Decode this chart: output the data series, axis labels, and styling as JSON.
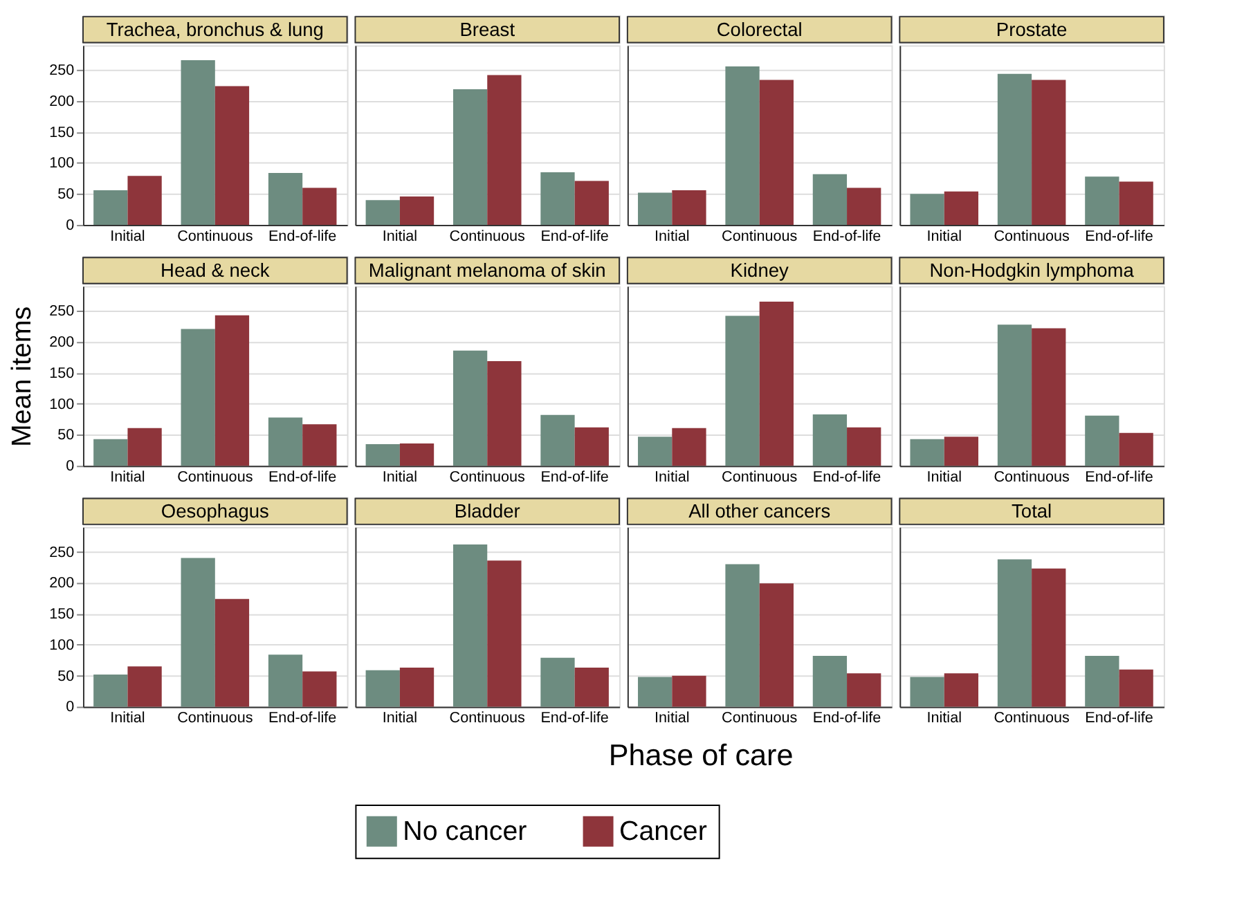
{
  "chart_data": [
    {
      "type": "bar",
      "title": "Trachea, bronchus & lung",
      "categories": [
        "Initial",
        "Continuous",
        "End-of-life"
      ],
      "series": [
        {
          "name": "No cancer",
          "color": "#6d8c80",
          "values": [
            56,
            266,
            84
          ]
        },
        {
          "name": "Cancer",
          "color": "#8e353b",
          "values": [
            79,
            224,
            60
          ]
        }
      ],
      "ylim": [
        0,
        290
      ],
      "yticks": [
        0,
        50,
        100,
        150,
        200,
        250
      ],
      "grid": "y",
      "legend": "bottom"
    },
    {
      "type": "bar",
      "title": "Breast",
      "categories": [
        "Initial",
        "Continuous",
        "End-of-life"
      ],
      "series": [
        {
          "name": "No cancer",
          "color": "#6d8c80",
          "values": [
            40,
            219,
            85
          ]
        },
        {
          "name": "Cancer",
          "color": "#8e353b",
          "values": [
            46,
            242,
            71
          ]
        }
      ],
      "ylim": [
        0,
        290
      ],
      "yticks": [
        0,
        50,
        100,
        150,
        200,
        250
      ],
      "grid": "y",
      "legend": "bottom",
      "tick_labels": "x"
    },
    {
      "type": "bar",
      "title": "Colorectal",
      "categories": [
        "Initial",
        "Continuous",
        "End-of-life"
      ],
      "series": [
        {
          "name": "No cancer",
          "color": "#6d8c80",
          "values": [
            52,
            256,
            82
          ]
        },
        {
          "name": "Cancer",
          "color": "#8e353b",
          "values": [
            56,
            234,
            60
          ]
        }
      ],
      "ylim": [
        0,
        290
      ],
      "yticks": [
        0,
        50,
        100,
        150,
        200,
        250
      ],
      "grid": "y",
      "legend": "bottom",
      "tick_labels": "x"
    },
    {
      "type": "bar",
      "title": "Prostate",
      "categories": [
        "Initial",
        "Continuous",
        "End-of-life"
      ],
      "series": [
        {
          "name": "No cancer",
          "color": "#6d8c80",
          "values": [
            50,
            244,
            78
          ]
        },
        {
          "name": "Cancer",
          "color": "#8e353b",
          "values": [
            54,
            234,
            70
          ]
        }
      ],
      "ylim": [
        0,
        290
      ],
      "yticks": [
        0,
        50,
        100,
        150,
        200,
        250
      ],
      "grid": "y",
      "legend": "bottom",
      "tick_labels": "x"
    },
    {
      "type": "bar",
      "title": "Head & neck",
      "ylabel": "Mean items",
      "categories": [
        "Initial",
        "Continuous",
        "End-of-life"
      ],
      "series": [
        {
          "name": "No cancer",
          "color": "#6d8c80",
          "values": [
            43,
            221,
            78
          ]
        },
        {
          "name": "Cancer",
          "color": "#8e353b",
          "values": [
            61,
            243,
            67
          ]
        }
      ],
      "ylim": [
        0,
        290
      ],
      "yticks": [
        0,
        50,
        100,
        150,
        200,
        250
      ],
      "grid": "y",
      "legend": "bottom"
    },
    {
      "type": "bar",
      "title": "Malignant melanoma of skin",
      "categories": [
        "Initial",
        "Continuous",
        "End-of-life"
      ],
      "series": [
        {
          "name": "No cancer",
          "color": "#6d8c80",
          "values": [
            35,
            186,
            82
          ]
        },
        {
          "name": "Cancer",
          "color": "#8e353b",
          "values": [
            36,
            169,
            62
          ]
        }
      ],
      "ylim": [
        0,
        290
      ],
      "yticks": [
        0,
        50,
        100,
        150,
        200,
        250
      ],
      "grid": "y",
      "legend": "bottom",
      "tick_labels": "x"
    },
    {
      "type": "bar",
      "title": "Kidney",
      "categories": [
        "Initial",
        "Continuous",
        "End-of-life"
      ],
      "series": [
        {
          "name": "No cancer",
          "color": "#6d8c80",
          "values": [
            47,
            242,
            83
          ]
        },
        {
          "name": "Cancer",
          "color": "#8e353b",
          "values": [
            61,
            265,
            62
          ]
        }
      ],
      "ylim": [
        0,
        290
      ],
      "yticks": [
        0,
        50,
        100,
        150,
        200,
        250
      ],
      "grid": "y",
      "legend": "bottom",
      "tick_labels": "x"
    },
    {
      "type": "bar",
      "title": "Non-Hodgkin lymphoma",
      "categories": [
        "Initial",
        "Continuous",
        "End-of-life"
      ],
      "series": [
        {
          "name": "No cancer",
          "color": "#6d8c80",
          "values": [
            43,
            228,
            81
          ]
        },
        {
          "name": "Cancer",
          "color": "#8e353b",
          "values": [
            47,
            222,
            53
          ]
        }
      ],
      "ylim": [
        0,
        290
      ],
      "yticks": [
        0,
        50,
        100,
        150,
        200,
        250
      ],
      "grid": "y",
      "legend": "bottom",
      "tick_labels": "x"
    },
    {
      "type": "bar",
      "title": "Oesophagus",
      "categories": [
        "Initial",
        "Continuous",
        "End-of-life"
      ],
      "series": [
        {
          "name": "No cancer",
          "color": "#6d8c80",
          "values": [
            52,
            240,
            84
          ]
        },
        {
          "name": "Cancer",
          "color": "#8e353b",
          "values": [
            65,
            174,
            57
          ]
        }
      ],
      "ylim": [
        0,
        290
      ],
      "yticks": [
        0,
        50,
        100,
        150,
        200,
        250
      ],
      "grid": "y",
      "legend": "bottom"
    },
    {
      "type": "bar",
      "title": "Bladder",
      "xlabel": "Phase of care",
      "categories": [
        "Initial",
        "Continuous",
        "End-of-life"
      ],
      "series": [
        {
          "name": "No cancer",
          "color": "#6d8c80",
          "values": [
            59,
            262,
            79
          ]
        },
        {
          "name": "Cancer",
          "color": "#8e353b",
          "values": [
            63,
            236,
            63
          ]
        }
      ],
      "ylim": [
        0,
        290
      ],
      "yticks": [
        0,
        50,
        100,
        150,
        200,
        250
      ],
      "grid": "y",
      "legend": "bottom",
      "tick_labels": "x"
    },
    {
      "type": "bar",
      "title": "All other cancers",
      "categories": [
        "Initial",
        "Continuous",
        "End-of-life"
      ],
      "series": [
        {
          "name": "No cancer",
          "color": "#6d8c80",
          "values": [
            48,
            230,
            82
          ]
        },
        {
          "name": "Cancer",
          "color": "#8e353b",
          "values": [
            50,
            199,
            54
          ]
        }
      ],
      "ylim": [
        0,
        290
      ],
      "yticks": [
        0,
        50,
        100,
        150,
        200,
        250
      ],
      "grid": "y",
      "legend": "bottom",
      "tick_labels": "x"
    },
    {
      "type": "bar",
      "title": "Total",
      "categories": [
        "Initial",
        "Continuous",
        "End-of-life"
      ],
      "series": [
        {
          "name": "No cancer",
          "color": "#6d8c80",
          "values": [
            48,
            238,
            82
          ]
        },
        {
          "name": "Cancer",
          "color": "#8e353b",
          "values": [
            54,
            223,
            60
          ]
        }
      ],
      "ylim": [
        0,
        290
      ],
      "yticks": [
        0,
        50,
        100,
        150,
        200,
        250
      ],
      "grid": "y",
      "legend": "bottom",
      "tick_labels": "x"
    }
  ]
}
